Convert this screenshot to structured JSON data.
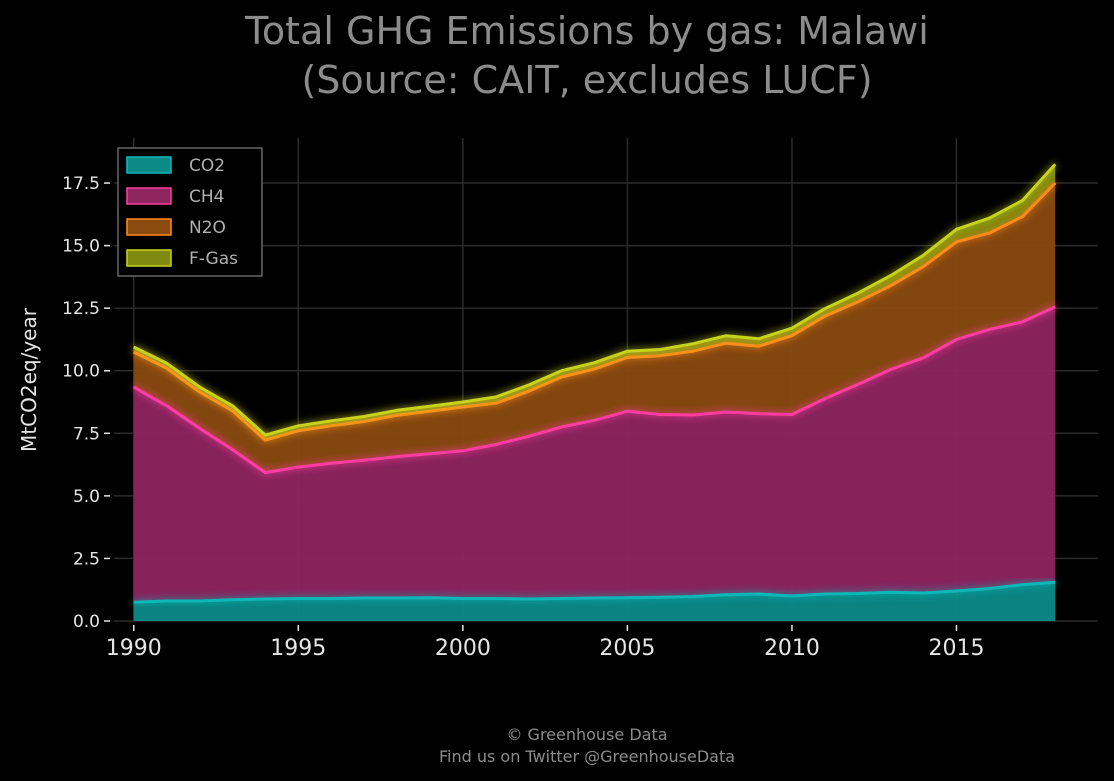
{
  "chart_data": {
    "type": "area",
    "stacked": true,
    "title_lines": [
      "Total GHG Emissions by gas: Malawi",
      "(Source: CAIT, excludes LUCF)"
    ],
    "xlabel": "",
    "ylabel": "MtCO2eq/year",
    "x": [
      1990,
      1991,
      1992,
      1993,
      1994,
      1995,
      1996,
      1997,
      1998,
      1999,
      2000,
      2001,
      2002,
      2003,
      2004,
      2005,
      2006,
      2007,
      2008,
      2009,
      2010,
      2011,
      2012,
      2013,
      2014,
      2015,
      2016,
      2017,
      2018
    ],
    "x_ticks": [
      "1990",
      "1995",
      "2000",
      "2005",
      "2010",
      "2015"
    ],
    "x_tick_values": [
      1990,
      1995,
      2000,
      2005,
      2010,
      2015
    ],
    "y_ticks": [
      "0.0",
      "2.5",
      "5.0",
      "7.5",
      "10.0",
      "12.5",
      "15.0",
      "17.5"
    ],
    "y_tick_values": [
      0,
      2.5,
      5,
      7.5,
      10,
      12.5,
      15,
      17.5
    ],
    "xlim": [
      1989.4,
      2019.3
    ],
    "ylim": [
      0,
      19.3
    ],
    "grid": true,
    "legend_position": "top-left",
    "series": [
      {
        "name": "CO2",
        "color": "#0fb8b8",
        "fill": "#0b8a88",
        "values": [
          0.75,
          0.8,
          0.8,
          0.85,
          0.88,
          0.9,
          0.9,
          0.92,
          0.92,
          0.93,
          0.9,
          0.9,
          0.88,
          0.9,
          0.92,
          0.93,
          0.95,
          0.98,
          1.05,
          1.08,
          1.0,
          1.08,
          1.1,
          1.15,
          1.12,
          1.2,
          1.3,
          1.45,
          1.55
        ]
      },
      {
        "name": "CH4",
        "color": "#ff3ea0",
        "fill": "#8e2460",
        "values": [
          8.6,
          7.8,
          6.9,
          6.0,
          5.05,
          5.25,
          5.4,
          5.5,
          5.65,
          5.75,
          5.9,
          6.15,
          6.5,
          6.85,
          7.1,
          7.45,
          7.3,
          7.25,
          7.3,
          7.2,
          7.25,
          7.8,
          8.35,
          8.9,
          9.4,
          10.05,
          10.35,
          10.5,
          11.0
        ]
      },
      {
        "name": "N2O",
        "color": "#ff8a1a",
        "fill": "#8a4a10",
        "values": [
          1.4,
          1.5,
          1.45,
          1.55,
          1.3,
          1.45,
          1.5,
          1.55,
          1.65,
          1.7,
          1.75,
          1.65,
          1.8,
          2.0,
          2.05,
          2.15,
          2.35,
          2.55,
          2.75,
          2.7,
          3.15,
          3.3,
          3.3,
          3.35,
          3.65,
          3.9,
          3.85,
          4.2,
          4.95
        ]
      },
      {
        "name": "F-Gas",
        "color": "#c8d41c",
        "fill": "#7e8a10",
        "values": [
          0.2,
          0.2,
          0.2,
          0.2,
          0.2,
          0.2,
          0.2,
          0.2,
          0.2,
          0.2,
          0.2,
          0.25,
          0.25,
          0.25,
          0.25,
          0.25,
          0.25,
          0.3,
          0.3,
          0.3,
          0.3,
          0.3,
          0.35,
          0.4,
          0.45,
          0.5,
          0.6,
          0.65,
          0.75
        ]
      }
    ]
  },
  "footer": {
    "copyright": "© Greenhouse Data",
    "twitter": "Find us on Twitter @GreenhouseData"
  }
}
